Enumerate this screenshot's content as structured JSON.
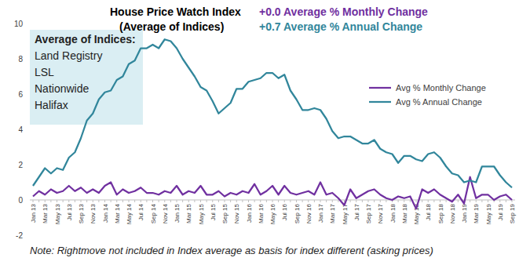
{
  "chart_data": {
    "type": "line",
    "title": "House Price Watch Index",
    "subtitle": "(Average of Indices)",
    "headlines": [
      {
        "text": "+0.0 Average % Monthly Change",
        "color": "#7030a0"
      },
      {
        "text": "+0.7 Average % Annual Change",
        "color": "#31869b"
      }
    ],
    "sources": {
      "heading": "Average of Indices:",
      "items": [
        "Land Registry",
        "LSL",
        "Nationwide",
        "Halifax"
      ]
    },
    "note": "Note: Rightmove not included in Index average as basis for index different (asking prices)",
    "categories": [
      "Jan 13",
      null,
      "Mar 13",
      null,
      "May 13",
      null,
      "Jul 13",
      null,
      "Sep 13",
      null,
      "Nov 13",
      null,
      "Jan 14",
      null,
      "Mar 14",
      null,
      "May 14",
      null,
      "Jul 14",
      null,
      "Sep 14",
      null,
      "Nov 14",
      null,
      "Jan 15",
      null,
      "Mar 15",
      null,
      "May 15",
      null,
      "Jul 15",
      null,
      "Sep 15",
      null,
      "Nov 15",
      null,
      "Jan 16",
      null,
      "Mar 16",
      null,
      "May 16",
      null,
      "Jul 16",
      null,
      "Sep 16",
      null,
      "Nov 16",
      null,
      "Jan 17",
      null,
      "Mar 17",
      null,
      "May 17",
      null,
      "Jul 17",
      null,
      "Sep 17",
      null,
      "Nov 17",
      null,
      "Jan 18",
      null,
      "Mar 18",
      null,
      "May 18",
      null,
      "Jul 18",
      null,
      "Sep 18",
      null,
      "Nov 18",
      null,
      "Jan 19",
      null,
      "Mar 19",
      null,
      "May 19",
      null,
      "Jul 19",
      null,
      "Sep 19"
    ],
    "series": [
      {
        "name": "Avg % Monthly Change",
        "color": "#7030a0",
        "values": [
          0.2,
          0.5,
          0.3,
          0.6,
          0.4,
          0.5,
          0.8,
          0.5,
          0.7,
          0.4,
          0.6,
          0.4,
          0.8,
          1.0,
          0.3,
          0.6,
          0.4,
          0.5,
          0.7,
          0.4,
          0.4,
          0.3,
          0.5,
          0.4,
          0.8,
          0.3,
          0.5,
          0.4,
          0.8,
          0.3,
          0.3,
          0.5,
          0.2,
          0.4,
          0.3,
          0.5,
          0.4,
          0.9,
          0.3,
          0.5,
          0.8,
          0.3,
          0.8,
          0.4,
          0.3,
          0.4,
          0.5,
          0.3,
          1.0,
          0.3,
          0.4,
          0.1,
          -0.3,
          0.6,
          0.1,
          0.3,
          0.5,
          0.6,
          0.3,
          0.1,
          0.0,
          0.2,
          0.1,
          0.2,
          -0.5,
          0.6,
          0.4,
          0.6,
          0.3,
          0.1,
          -0.1,
          0.3,
          -0.2,
          1.3,
          0.1,
          0.3,
          0.3,
          0.0,
          0.2,
          0.3,
          0.0
        ]
      },
      {
        "name": "Avg % Annual Change",
        "color": "#31869b",
        "values": [
          0.8,
          1.3,
          1.8,
          1.5,
          1.8,
          1.7,
          2.4,
          2.7,
          3.5,
          4.5,
          4.9,
          5.7,
          6.1,
          6.2,
          6.8,
          7.0,
          7.7,
          7.9,
          8.6,
          8.6,
          8.8,
          8.6,
          9.1,
          9.0,
          8.6,
          8.0,
          7.5,
          7.0,
          6.4,
          6.2,
          5.6,
          4.9,
          5.2,
          5.5,
          6.3,
          6.3,
          6.7,
          6.8,
          6.9,
          7.2,
          7.2,
          6.9,
          7.1,
          6.2,
          5.7,
          5.1,
          5.1,
          5.2,
          5.1,
          4.6,
          3.9,
          3.5,
          3.6,
          3.6,
          3.4,
          3.2,
          3.2,
          3.4,
          2.9,
          2.7,
          2.6,
          2.1,
          2.5,
          2.5,
          2.3,
          2.2,
          2.6,
          2.7,
          2.4,
          1.9,
          1.5,
          1.4,
          1.0,
          1.1,
          1.0,
          1.9,
          1.9,
          1.9,
          1.4,
          1.0,
          0.7
        ]
      }
    ],
    "ylim": [
      -2,
      10
    ],
    "yticks": [
      -2,
      0,
      2,
      4,
      6,
      8,
      10
    ],
    "grid": false,
    "legend": "right"
  }
}
